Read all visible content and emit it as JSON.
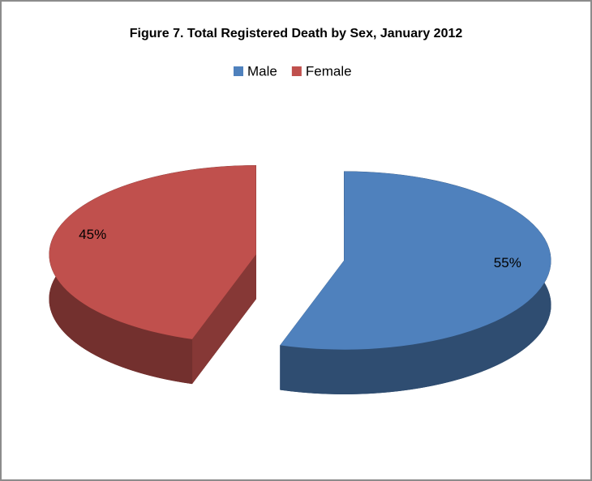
{
  "chart_data": {
    "type": "pie",
    "title": "Figure 7. Total Registered Death by Sex, January 2012",
    "categories": [
      "Male",
      "Female"
    ],
    "values": [
      55,
      45
    ],
    "value_labels": [
      "55%",
      "45%"
    ],
    "colors": [
      "#4f81bd",
      "#c0504d"
    ],
    "legend": "top"
  }
}
